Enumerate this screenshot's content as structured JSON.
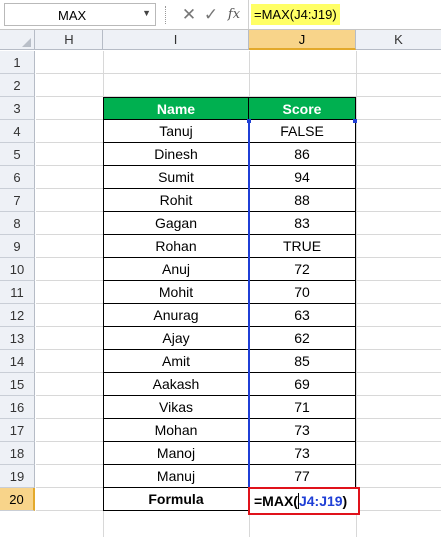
{
  "formula_bar": {
    "name_box": "MAX",
    "cancel_symbol": "✕",
    "enter_symbol": "✓",
    "fx_symbol": "fx",
    "formula": "=MAX(J4:J19)"
  },
  "columns": [
    "H",
    "I",
    "J",
    "K"
  ],
  "active_column": "J",
  "rows": [
    "1",
    "2",
    "3",
    "4",
    "5",
    "6",
    "7",
    "8",
    "9",
    "10",
    "11",
    "12",
    "13",
    "14",
    "15",
    "16",
    "17",
    "18",
    "19",
    "20"
  ],
  "active_row": "20",
  "table": {
    "headers": {
      "name": "Name",
      "score": "Score"
    },
    "header_color": "#00b050",
    "entries": [
      {
        "name": "Tanuj",
        "score": "FALSE"
      },
      {
        "name": "Dinesh",
        "score": "86"
      },
      {
        "name": "Sumit",
        "score": "94"
      },
      {
        "name": "Rohit",
        "score": "88"
      },
      {
        "name": "Gagan",
        "score": "83"
      },
      {
        "name": "Rohan",
        "score": "TRUE"
      },
      {
        "name": "Anuj",
        "score": "72"
      },
      {
        "name": "Mohit",
        "score": "70"
      },
      {
        "name": "Anurag",
        "score": "63"
      },
      {
        "name": "Ajay",
        "score": "62"
      },
      {
        "name": "Amit",
        "score": "85"
      },
      {
        "name": "Aakash",
        "score": "69"
      },
      {
        "name": "Vikas",
        "score": "71"
      },
      {
        "name": "Mohan",
        "score": "73"
      },
      {
        "name": "Manoj",
        "score": "73"
      },
      {
        "name": "Manuj",
        "score": "77"
      }
    ],
    "formula_label": "Formula",
    "formula_cell": {
      "prefix": "=MAX(",
      "ref": "J4:J19",
      "suffix": ")"
    }
  }
}
